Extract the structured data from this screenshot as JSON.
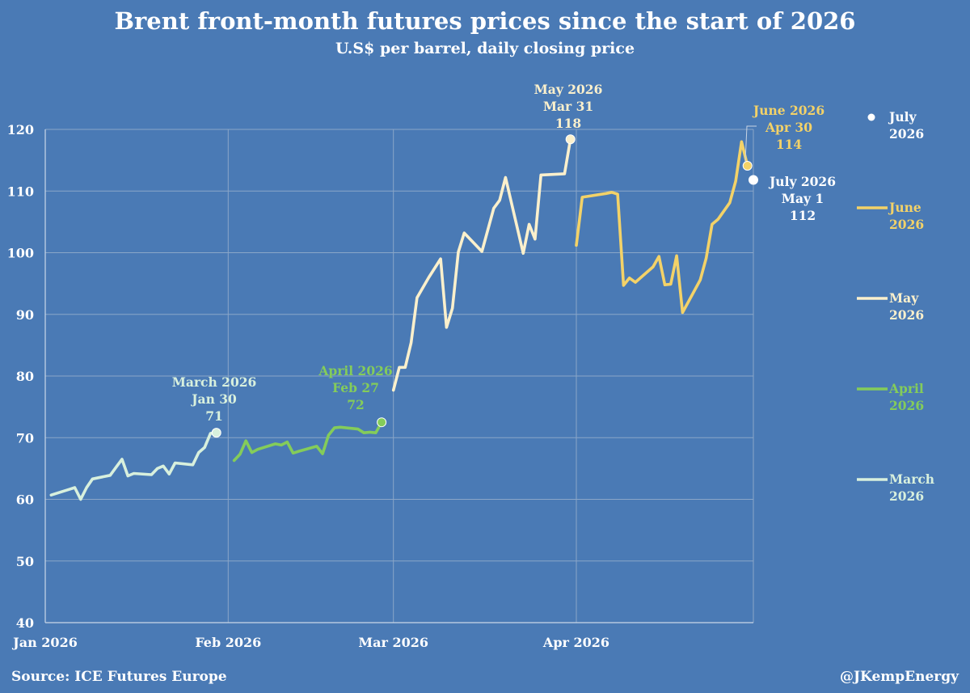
{
  "colors": {
    "background": "#4a7ab5",
    "march": "#d8f0dd",
    "april": "#84cc5a",
    "may": "#fbf0cc",
    "june": "#f3d268",
    "july": "#ffffff",
    "grid": "#8aa6c8"
  },
  "footer": {
    "source": "Source: ICE Futures Europe",
    "credit": "@JKempEnergy"
  },
  "chart_data": {
    "type": "line",
    "title": "Brent front-month futures prices since the start of 2026",
    "subtitle": "U.S$ per barrel, daily closing price",
    "ylim": [
      40,
      120
    ],
    "y_ticks": [
      40,
      50,
      60,
      70,
      80,
      90,
      100,
      110,
      120
    ],
    "x_ticks": [
      {
        "label": "Jan 2026",
        "date": "2026-01-01"
      },
      {
        "label": "Feb 2026",
        "date": "2026-02-01"
      },
      {
        "label": "Mar 2026",
        "date": "2026-03-01"
      },
      {
        "label": "Apr 2026",
        "date": "2026-04-01"
      }
    ],
    "xlim": [
      "2026-01-01",
      "2026-05-01"
    ],
    "grid": true,
    "legend": [
      {
        "series": "July 2026",
        "label": [
          "July",
          "2026"
        ],
        "marker": "dot"
      },
      {
        "series": "June 2026",
        "label": [
          "June",
          "2026"
        ],
        "marker": "line"
      },
      {
        "series": "May 2026",
        "label": [
          "May",
          "2026"
        ],
        "marker": "line"
      },
      {
        "series": "April 2026",
        "label": [
          "April",
          "2026"
        ],
        "marker": "line"
      },
      {
        "series": "March 2026",
        "label": [
          "March",
          "2026"
        ],
        "marker": "line"
      }
    ],
    "series": [
      {
        "name": "March 2026",
        "color_key": "march",
        "points": [
          [
            "2026-01-02",
            60.7
          ],
          [
            "2026-01-05",
            61.6
          ],
          [
            "2026-01-06",
            61.9
          ],
          [
            "2026-01-07",
            60.0
          ],
          [
            "2026-01-08",
            61.9
          ],
          [
            "2026-01-09",
            63.3
          ],
          [
            "2026-01-12",
            63.9
          ],
          [
            "2026-01-13",
            65.2
          ],
          [
            "2026-01-14",
            66.5
          ],
          [
            "2026-01-15",
            63.8
          ],
          [
            "2026-01-16",
            64.2
          ],
          [
            "2026-01-19",
            64.0
          ],
          [
            "2026-01-20",
            65.0
          ],
          [
            "2026-01-21",
            65.4
          ],
          [
            "2026-01-22",
            64.1
          ],
          [
            "2026-01-23",
            65.9
          ],
          [
            "2026-01-26",
            65.6
          ],
          [
            "2026-01-27",
            67.6
          ],
          [
            "2026-01-28",
            68.4
          ],
          [
            "2026-01-29",
            70.7
          ],
          [
            "2026-01-30",
            70.8
          ]
        ],
        "callout": {
          "point": [
            "2026-01-30",
            70.8
          ],
          "lines": [
            "March 2026",
            "Jan 30",
            "71"
          ]
        }
      },
      {
        "name": "April 2026",
        "color_key": "april",
        "points": [
          [
            "2026-02-02",
            66.3
          ],
          [
            "2026-02-03",
            67.3
          ],
          [
            "2026-02-04",
            69.5
          ],
          [
            "2026-02-05",
            67.6
          ],
          [
            "2026-02-06",
            68.1
          ],
          [
            "2026-02-09",
            69.0
          ],
          [
            "2026-02-10",
            68.8
          ],
          [
            "2026-02-11",
            69.3
          ],
          [
            "2026-02-12",
            67.5
          ],
          [
            "2026-02-13",
            67.8
          ],
          [
            "2026-02-16",
            68.6
          ],
          [
            "2026-02-17",
            67.4
          ],
          [
            "2026-02-18",
            70.4
          ],
          [
            "2026-02-19",
            71.6
          ],
          [
            "2026-02-20",
            71.7
          ],
          [
            "2026-02-23",
            71.4
          ],
          [
            "2026-02-24",
            70.8
          ],
          [
            "2026-02-25",
            70.9
          ],
          [
            "2026-02-26",
            70.8
          ],
          [
            "2026-02-27",
            72.5
          ]
        ],
        "callout": {
          "point": [
            "2026-02-27",
            72.5
          ],
          "lines": [
            "April 2026",
            "Feb 27",
            "72"
          ]
        }
      },
      {
        "name": "May 2026",
        "color_key": "may",
        "points": [
          [
            "2026-03-01",
            77.7
          ],
          [
            "2026-03-02",
            81.4
          ],
          [
            "2026-03-03",
            81.4
          ],
          [
            "2026-03-04",
            85.4
          ],
          [
            "2026-03-05",
            92.7
          ],
          [
            "2026-03-07",
            96.0
          ],
          [
            "2026-03-09",
            99.0
          ],
          [
            "2026-03-10",
            87.9
          ],
          [
            "2026-03-11",
            91.0
          ],
          [
            "2026-03-12",
            100.1
          ],
          [
            "2026-03-13",
            103.2
          ],
          [
            "2026-03-16",
            100.2
          ],
          [
            "2026-03-18",
            107.2
          ],
          [
            "2026-03-19",
            108.5
          ],
          [
            "2026-03-20",
            112.2
          ],
          [
            "2026-03-23",
            99.9
          ],
          [
            "2026-03-24",
            104.6
          ],
          [
            "2026-03-25",
            102.2
          ],
          [
            "2026-03-26",
            112.6
          ],
          [
            "2026-03-30",
            112.8
          ],
          [
            "2026-03-31",
            118.4
          ]
        ],
        "callout": {
          "point": [
            "2026-03-31",
            118.4
          ],
          "lines": [
            "May 2026",
            "Mar 31",
            "118"
          ]
        }
      },
      {
        "name": "June 2026",
        "color_key": "june",
        "points": [
          [
            "2026-04-01",
            101.2
          ],
          [
            "2026-04-02",
            109.0
          ],
          [
            "2026-04-06",
            109.6
          ],
          [
            "2026-04-07",
            109.8
          ],
          [
            "2026-04-08",
            109.5
          ],
          [
            "2026-04-09",
            94.7
          ],
          [
            "2026-04-10",
            95.9
          ],
          [
            "2026-04-11",
            95.2
          ],
          [
            "2026-04-14",
            97.7
          ],
          [
            "2026-04-15",
            99.4
          ],
          [
            "2026-04-16",
            94.8
          ],
          [
            "2026-04-17",
            94.9
          ],
          [
            "2026-04-18",
            99.5
          ],
          [
            "2026-04-19",
            90.3
          ],
          [
            "2026-04-22",
            95.6
          ],
          [
            "2026-04-23",
            99.1
          ],
          [
            "2026-04-24",
            104.6
          ],
          [
            "2026-04-25",
            105.4
          ],
          [
            "2026-04-27",
            108.1
          ],
          [
            "2026-04-28",
            111.6
          ],
          [
            "2026-04-29",
            118.0
          ],
          [
            "2026-04-30",
            114.1
          ]
        ],
        "callout": {
          "point": [
            "2026-04-30",
            114.1
          ],
          "lines": [
            "June 2026",
            "Apr 30",
            "114"
          ]
        }
      },
      {
        "name": "July 2026",
        "color_key": "july",
        "points": [
          [
            "2026-05-01",
            111.8
          ]
        ],
        "callout": {
          "point": [
            "2026-05-01",
            111.8
          ],
          "lines": [
            "July 2026",
            "May 1",
            "112"
          ]
        }
      }
    ]
  }
}
